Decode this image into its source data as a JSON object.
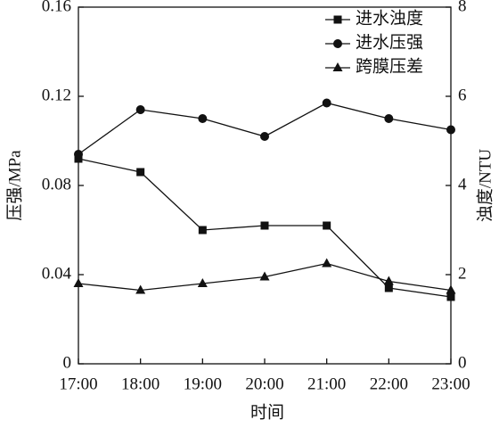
{
  "chart_data": {
    "type": "line",
    "categories": [
      "17:00",
      "18:00",
      "19:00",
      "20:00",
      "21:00",
      "22:00",
      "23:00"
    ],
    "x_label": "时间",
    "y_label": "压强/MPa",
    "y2_label": "浊度/NTU",
    "ylim": [
      0,
      0.16
    ],
    "yticks": [
      0,
      0.04,
      0.08,
      0.12,
      0.16
    ],
    "y2lim": [
      0,
      8
    ],
    "y2ticks": [
      0,
      2,
      4,
      6,
      8
    ],
    "legend": "upper right",
    "series": [
      {
        "name": "进水浊度",
        "color": "#111111",
        "marker": "square",
        "axis": "y2",
        "values": [
          4.6,
          4.3,
          3.0,
          3.1,
          3.1,
          1.7,
          1.5
        ]
      },
      {
        "name": "进水压强",
        "color": "#111111",
        "marker": "circle",
        "values": [
          0.094,
          0.114,
          0.11,
          0.102,
          0.117,
          0.11,
          0.105
        ]
      },
      {
        "name": "跨膜压差",
        "color": "#111111",
        "marker": "triangle",
        "values": [
          0.036,
          0.033,
          0.036,
          0.039,
          0.045,
          0.037,
          0.033
        ]
      }
    ]
  }
}
